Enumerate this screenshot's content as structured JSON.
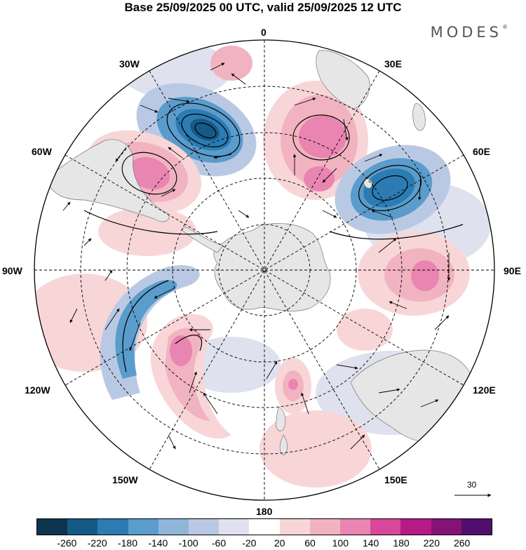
{
  "title": "Base 25/09/2025 00 UTC, valid 25/09/2025 12 UTC",
  "brand": "MODES",
  "brand_mark": "®",
  "longitude_labels": {
    "lon_0": "0",
    "lon_30e": "30E",
    "lon_60e": "60E",
    "lon_90e": "90E",
    "lon_120e": "120E",
    "lon_150e": "150E",
    "lon_180": "180",
    "lon_150w": "150W",
    "lon_120w": "120W",
    "lon_90w": "90W",
    "lon_60w": "60W",
    "lon_30w": "30W"
  },
  "vector_scale": {
    "value": "30"
  },
  "colorbar": {
    "colors": [
      "#0d3550",
      "#155a85",
      "#2c7cb3",
      "#5a9ccb",
      "#8fb6d9",
      "#bac9e3",
      "#dfe1ef",
      "#ffffff",
      "#f8d6d8",
      "#f2b3c1",
      "#e985b0",
      "#d84799",
      "#b51a86",
      "#851275",
      "#520e6e"
    ],
    "tick_labels": [
      "-260",
      "-220",
      "-180",
      "-140",
      "-100",
      "-60",
      "-20",
      "20",
      "60",
      "100",
      "140",
      "180",
      "220",
      "260"
    ]
  },
  "anomaly_colors": {
    "pos1": "#f8d6d8",
    "pos2": "#f2b3c1",
    "pos3": "#e985b0",
    "neg1": "#dfe1ef",
    "neg2": "#bac9e3",
    "neg3": "#5a9ccb",
    "neg4": "#2c7cb3",
    "land": "#e6e6e6"
  }
}
